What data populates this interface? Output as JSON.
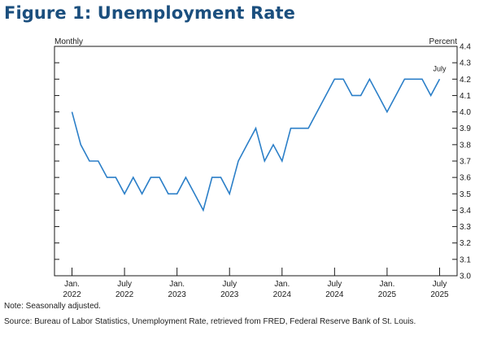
{
  "figure": {
    "title": "Figure 1: Unemployment Rate",
    "note": "Note: Seasonally adjusted.",
    "source": "Source: Bureau of Labor Statistics, Unemployment Rate, retrieved from FRED, Federal Reserve Bank of St. Louis."
  },
  "colors": {
    "title": "#1b4f7e",
    "series": "#2b7fc8",
    "axis": "#1a1a1a"
  },
  "chart_data": {
    "type": "line",
    "title": "Figure 1: Unemployment Rate",
    "left_label": "Monthly",
    "right_label": "Percent",
    "ylim": [
      3.0,
      4.4
    ],
    "y_ticks": [
      3.0,
      3.1,
      3.2,
      3.3,
      3.4,
      3.5,
      3.6,
      3.7,
      3.8,
      3.9,
      4.0,
      4.1,
      4.2,
      4.3,
      4.4
    ],
    "y_tick_labels": [
      "3.0",
      "3.1",
      "3.2",
      "3.3",
      "3.4",
      "3.5",
      "3.6",
      "3.7",
      "3.8",
      "3.9",
      "4.0",
      "4.1",
      "4.2",
      "4.3",
      "4.4"
    ],
    "x_range": [
      "2021-11",
      "2025-09"
    ],
    "x_tick_labels": [
      {
        "date": "2022-01",
        "line1": "Jan.",
        "line2": "2022"
      },
      {
        "date": "2022-07",
        "line1": "July",
        "line2": "2022"
      },
      {
        "date": "2023-01",
        "line1": "Jan.",
        "line2": "2023"
      },
      {
        "date": "2023-07",
        "line1": "July",
        "line2": "2023"
      },
      {
        "date": "2024-01",
        "line1": "Jan.",
        "line2": "2024"
      },
      {
        "date": "2024-07",
        "line1": "July",
        "line2": "2024"
      },
      {
        "date": "2025-01",
        "line1": "Jan.",
        "line2": "2025"
      },
      {
        "date": "2025-07",
        "line1": "July",
        "line2": "2025"
      }
    ],
    "annotations": [
      {
        "text": "July",
        "date": "2025-07",
        "y": 4.2
      }
    ],
    "grid": false,
    "series": [
      {
        "x": [
          "2022-01",
          "2022-02",
          "2022-03",
          "2022-04",
          "2022-05",
          "2022-06",
          "2022-07",
          "2022-08",
          "2022-09",
          "2022-10",
          "2022-11",
          "2022-12",
          "2023-01",
          "2023-02",
          "2023-03",
          "2023-04",
          "2023-05",
          "2023-06",
          "2023-07",
          "2023-08",
          "2023-09",
          "2023-10",
          "2023-11",
          "2023-12",
          "2024-01",
          "2024-02",
          "2024-03",
          "2024-04",
          "2024-05",
          "2024-06",
          "2024-07",
          "2024-08",
          "2024-09",
          "2024-10",
          "2024-11",
          "2024-12",
          "2025-01",
          "2025-02",
          "2025-03",
          "2025-04",
          "2025-05",
          "2025-06",
          "2025-07"
        ],
        "values": [
          4.0,
          3.8,
          3.7,
          3.7,
          3.6,
          3.6,
          3.5,
          3.6,
          3.5,
          3.6,
          3.6,
          3.5,
          3.5,
          3.6,
          3.5,
          3.4,
          3.6,
          3.6,
          3.5,
          3.7,
          3.8,
          3.9,
          3.7,
          3.8,
          3.7,
          3.9,
          3.9,
          3.9,
          4.0,
          4.1,
          4.2,
          4.2,
          4.1,
          4.1,
          4.2,
          4.1,
          4.0,
          4.1,
          4.2,
          4.2,
          4.2,
          4.1,
          4.2
        ]
      }
    ]
  }
}
